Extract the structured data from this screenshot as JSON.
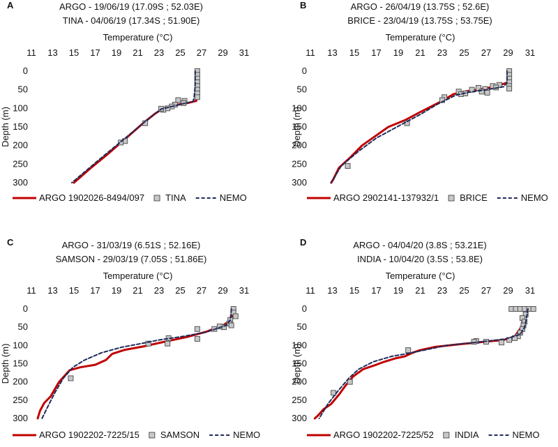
{
  "colors": {
    "argo": "#c00000",
    "nemo": "#1f2a5a",
    "marker_fill": "#c8c8c8",
    "marker_stroke": "#555555"
  },
  "chart_data": [
    {
      "panel": "A",
      "type": "line",
      "title_lines": [
        "ARGO - 19/06/19 (17.09S ; 52.03E)",
        "TINA - 04/06/19 (17.34S ; 51.90E)"
      ],
      "xlabel": "Temperature (°C)",
      "ylabel": "Depth (m)",
      "x_axis_position": "top",
      "y_inverted": true,
      "xlim": [
        11,
        31
      ],
      "ylim": [
        0,
        300
      ],
      "xticks": [
        11,
        13,
        15,
        17,
        19,
        21,
        23,
        25,
        27,
        29,
        31
      ],
      "yticks": [
        0,
        50,
        100,
        150,
        200,
        250,
        300
      ],
      "legend": [
        "ARGO 1902026-8494/097",
        "TINA",
        "NEMO"
      ],
      "series": [
        {
          "name": "ARGO 1902026-8494/097",
          "style": "solid",
          "points": [
            [
              26.6,
              0
            ],
            [
              26.6,
              20
            ],
            [
              26.5,
              40
            ],
            [
              26.5,
              60
            ],
            [
              26.5,
              80
            ],
            [
              25.5,
              87
            ],
            [
              24.8,
              90
            ],
            [
              24.2,
              97
            ],
            [
              23.3,
              102
            ],
            [
              22.6,
              115
            ],
            [
              21.5,
              140
            ],
            [
              19.7,
              185
            ],
            [
              18.1,
              225
            ],
            [
              16.6,
              260
            ],
            [
              15.0,
              300
            ]
          ]
        },
        {
          "name": "TINA",
          "style": "markers",
          "points": [
            [
              26.6,
              0
            ],
            [
              26.6,
              10
            ],
            [
              26.6,
              20
            ],
            [
              26.6,
              30
            ],
            [
              26.6,
              40
            ],
            [
              26.6,
              50
            ],
            [
              26.6,
              60
            ],
            [
              26.6,
              70
            ],
            [
              24.8,
              78
            ],
            [
              25.4,
              80
            ],
            [
              25.3,
              86
            ],
            [
              24.5,
              90
            ],
            [
              24.2,
              95
            ],
            [
              23.8,
              100
            ],
            [
              23.4,
              104
            ],
            [
              23.2,
              101
            ],
            [
              21.7,
              140
            ],
            [
              19.8,
              188
            ],
            [
              19.4,
              192
            ]
          ]
        },
        {
          "name": "NEMO",
          "style": "dashed",
          "points": [
            [
              26.4,
              0
            ],
            [
              26.4,
              40
            ],
            [
              26.3,
              70
            ],
            [
              26.2,
              82
            ],
            [
              25.2,
              88
            ],
            [
              24.2,
              95
            ],
            [
              23.2,
              102
            ],
            [
              22.5,
              117
            ],
            [
              21.5,
              140
            ],
            [
              19.7,
              183
            ],
            [
              17.7,
              230
            ],
            [
              14.8,
              300
            ]
          ]
        }
      ]
    },
    {
      "panel": "B",
      "type": "line",
      "title_lines": [
        "ARGO - 26/04/19 (13.75S ; 52.6E)",
        "BRICE - 23/04/19 (13.75S ; 53.75E)"
      ],
      "xlabel": "Temperature (°C)",
      "ylabel": "Depth (m)",
      "x_axis_position": "top",
      "y_inverted": true,
      "xlim": [
        11,
        31
      ],
      "ylim": [
        0,
        300
      ],
      "xticks": [
        11,
        13,
        15,
        17,
        19,
        21,
        23,
        25,
        27,
        29,
        31
      ],
      "yticks": [
        0,
        50,
        100,
        150,
        200,
        250,
        300
      ],
      "legend": [
        "ARGO 2902141-137932/1",
        "BRICE",
        "NEMO"
      ],
      "series": [
        {
          "name": "ARGO 2902141-137932/1",
          "style": "solid",
          "points": [
            [
              29.1,
              0
            ],
            [
              29.0,
              30
            ],
            [
              28.0,
              40
            ],
            [
              26.7,
              48
            ],
            [
              25.2,
              54
            ],
            [
              24.0,
              62
            ],
            [
              23.0,
              80
            ],
            [
              21.0,
              110
            ],
            [
              19.6,
              132
            ],
            [
              18.1,
              150
            ],
            [
              16.9,
              175
            ],
            [
              15.7,
              200
            ],
            [
              14.7,
              230
            ],
            [
              13.6,
              260
            ],
            [
              13.1,
              290
            ],
            [
              12.9,
              300
            ]
          ]
        },
        {
          "name": "BRICE",
          "style": "markers",
          "points": [
            [
              29.1,
              0
            ],
            [
              29.1,
              10
            ],
            [
              29.1,
              20
            ],
            [
              29.1,
              30
            ],
            [
              29.1,
              40
            ],
            [
              29.1,
              47
            ],
            [
              28.2,
              37
            ],
            [
              27.6,
              40
            ],
            [
              27.9,
              44
            ],
            [
              26.3,
              45
            ],
            [
              26.9,
              48
            ],
            [
              25.7,
              50
            ],
            [
              26.6,
              55
            ],
            [
              27.1,
              58
            ],
            [
              24.5,
              55
            ],
            [
              25.1,
              60
            ],
            [
              24.7,
              62
            ],
            [
              23.2,
              70
            ],
            [
              23.0,
              78
            ],
            [
              19.8,
              140
            ],
            [
              14.4,
              255
            ]
          ]
        },
        {
          "name": "NEMO",
          "style": "dashed",
          "points": [
            [
              28.9,
              0
            ],
            [
              28.9,
              30
            ],
            [
              28.6,
              42
            ],
            [
              27.0,
              50
            ],
            [
              25.4,
              57
            ],
            [
              24.2,
              65
            ],
            [
              22.5,
              90
            ],
            [
              21.1,
              115
            ],
            [
              19.2,
              145
            ],
            [
              17.0,
              180
            ],
            [
              15.4,
              215
            ],
            [
              13.8,
              255
            ],
            [
              12.9,
              300
            ]
          ]
        }
      ]
    },
    {
      "panel": "C",
      "type": "line",
      "title_lines": [
        "ARGO - 31/03/19 (6.51S ; 52.16E)",
        "SAMSON - 29/03/19 (7.05S ; 51.86E)"
      ],
      "xlabel": "Temperature (°C)",
      "ylabel": "Depth (m)",
      "x_axis_position": "top",
      "y_inverted": true,
      "xlim": [
        11,
        31
      ],
      "ylim": [
        0,
        300
      ],
      "xticks": [
        11,
        13,
        15,
        17,
        19,
        21,
        23,
        25,
        27,
        29,
        31
      ],
      "yticks": [
        0,
        50,
        100,
        150,
        200,
        250,
        300
      ],
      "legend": [
        "ARGO 1902202-7225/15",
        "SAMSON",
        "NEMO"
      ],
      "series": [
        {
          "name": "ARGO 1902202-7225/15",
          "style": "solid",
          "points": [
            [
              30.0,
              0
            ],
            [
              29.8,
              30
            ],
            [
              29.0,
              45
            ],
            [
              27.5,
              62
            ],
            [
              25.6,
              77
            ],
            [
              23.5,
              90
            ],
            [
              21.5,
              103
            ],
            [
              19.8,
              112
            ],
            [
              18.6,
              123
            ],
            [
              18.0,
              140
            ],
            [
              17.0,
              153
            ],
            [
              15.6,
              160
            ],
            [
              14.6,
              168
            ],
            [
              13.6,
              200
            ],
            [
              12.8,
              240
            ],
            [
              12.2,
              258
            ],
            [
              11.8,
              280
            ],
            [
              11.6,
              300
            ]
          ]
        },
        {
          "name": "SAMSON",
          "style": "markers",
          "points": [
            [
              30.0,
              0
            ],
            [
              30.0,
              10
            ],
            [
              30.2,
              20
            ],
            [
              29.7,
              30
            ],
            [
              29.6,
              40
            ],
            [
              29.8,
              45
            ],
            [
              29.1,
              50
            ],
            [
              28.7,
              48
            ],
            [
              28.2,
              55
            ],
            [
              26.6,
              55
            ],
            [
              26.6,
              82
            ],
            [
              23.9,
              80
            ],
            [
              23.8,
              95
            ],
            [
              22.0,
              95
            ],
            [
              14.7,
              190
            ]
          ]
        },
        {
          "name": "NEMO",
          "style": "dashed",
          "points": [
            [
              29.8,
              0
            ],
            [
              29.7,
              30
            ],
            [
              29.3,
              45
            ],
            [
              27.5,
              63
            ],
            [
              25.3,
              75
            ],
            [
              23.0,
              85
            ],
            [
              21.3,
              95
            ],
            [
              19.5,
              105
            ],
            [
              17.6,
              120
            ],
            [
              16.0,
              140
            ],
            [
              14.9,
              160
            ],
            [
              14.0,
              190
            ],
            [
              13.2,
              230
            ],
            [
              12.5,
              270
            ],
            [
              12.0,
              300
            ]
          ]
        }
      ]
    },
    {
      "panel": "D",
      "type": "line",
      "title_lines": [
        "ARGO - 04/04/20 (3.8S ; 53.21E)",
        "INDIA - 10/04/20 (3.5S ; 53.8E)"
      ],
      "xlabel": "Temperature (°C)",
      "ylabel": "Depth (m)",
      "x_axis_position": "top",
      "y_inverted": true,
      "xlim": [
        11,
        31
      ],
      "ylim": [
        0,
        300
      ],
      "xticks": [
        11,
        13,
        15,
        17,
        19,
        21,
        23,
        25,
        27,
        29,
        31
      ],
      "yticks": [
        0,
        50,
        100,
        150,
        200,
        250,
        300
      ],
      "legend": [
        "ARGO 1902202-7225/52",
        "INDIA",
        "NEMO"
      ],
      "series": [
        {
          "name": "ARGO 1902202-7225/52",
          "style": "solid",
          "points": [
            [
              30.6,
              0
            ],
            [
              30.4,
              20
            ],
            [
              30.2,
              50
            ],
            [
              29.6,
              75
            ],
            [
              28.6,
              85
            ],
            [
              26.8,
              90
            ],
            [
              24.5,
              97
            ],
            [
              22.4,
              104
            ],
            [
              21.0,
              113
            ],
            [
              20.3,
              120
            ],
            [
              19.6,
              130
            ],
            [
              18.8,
              135
            ],
            [
              17.7,
              145
            ],
            [
              16.8,
              155
            ],
            [
              15.8,
              165
            ],
            [
              14.9,
              185
            ],
            [
              14.2,
              210
            ],
            [
              13.6,
              235
            ],
            [
              12.9,
              260
            ],
            [
              12.2,
              275
            ],
            [
              11.7,
              292
            ],
            [
              11.4,
              300
            ]
          ]
        },
        {
          "name": "INDIA",
          "style": "markers",
          "points": [
            [
              29.3,
              0
            ],
            [
              29.7,
              0
            ],
            [
              30.1,
              0
            ],
            [
              30.5,
              0
            ],
            [
              30.9,
              0
            ],
            [
              31.3,
              0
            ],
            [
              30.6,
              15
            ],
            [
              30.3,
              25
            ],
            [
              30.5,
              35
            ],
            [
              30.4,
              45
            ],
            [
              30.3,
              55
            ],
            [
              30.1,
              65
            ],
            [
              29.9,
              75
            ],
            [
              29.6,
              80
            ],
            [
              29.1,
              85
            ],
            [
              28.4,
              92
            ],
            [
              27.0,
              90
            ],
            [
              26.1,
              88
            ],
            [
              25.9,
              90
            ],
            [
              19.9,
              113
            ],
            [
              14.6,
              200
            ],
            [
              13.1,
              230
            ]
          ]
        },
        {
          "name": "NEMO",
          "style": "dashed",
          "points": [
            [
              30.8,
              0
            ],
            [
              30.7,
              20
            ],
            [
              30.5,
              50
            ],
            [
              30.1,
              70
            ],
            [
              28.8,
              82
            ],
            [
              26.6,
              90
            ],
            [
              23.4,
              100
            ],
            [
              21.5,
              112
            ],
            [
              19.9,
              122
            ],
            [
              18.4,
              130
            ],
            [
              16.7,
              145
            ],
            [
              15.4,
              165
            ],
            [
              14.5,
              190
            ],
            [
              13.5,
              225
            ],
            [
              12.6,
              260
            ],
            [
              11.8,
              300
            ]
          ]
        }
      ]
    }
  ]
}
